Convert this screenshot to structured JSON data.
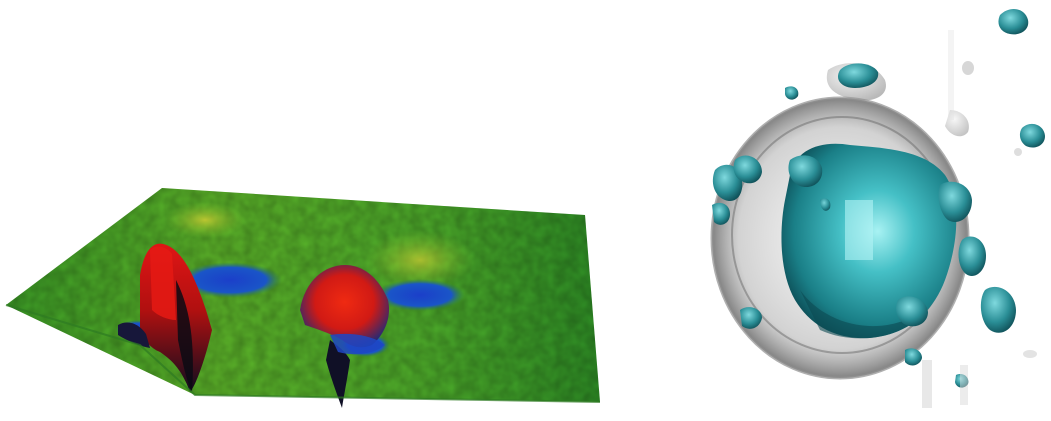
{
  "figure": {
    "panels": [
      {
        "name": "surface-plot",
        "kind": "3d-height-surface",
        "colormap": [
          "#1f8f22",
          "#5fbf2a",
          "#b9d42f",
          "#d43a1a",
          "#e01515",
          "#1a1a4a",
          "#1b4fc9"
        ]
      },
      {
        "name": "volume-render",
        "kind": "3d-isosurface",
        "colors": {
          "outer_shell": "#9a9a9a",
          "core": "#2aa6ad",
          "core_highlight": "#9feef0",
          "blob": "#1e7f87"
        }
      }
    ]
  }
}
